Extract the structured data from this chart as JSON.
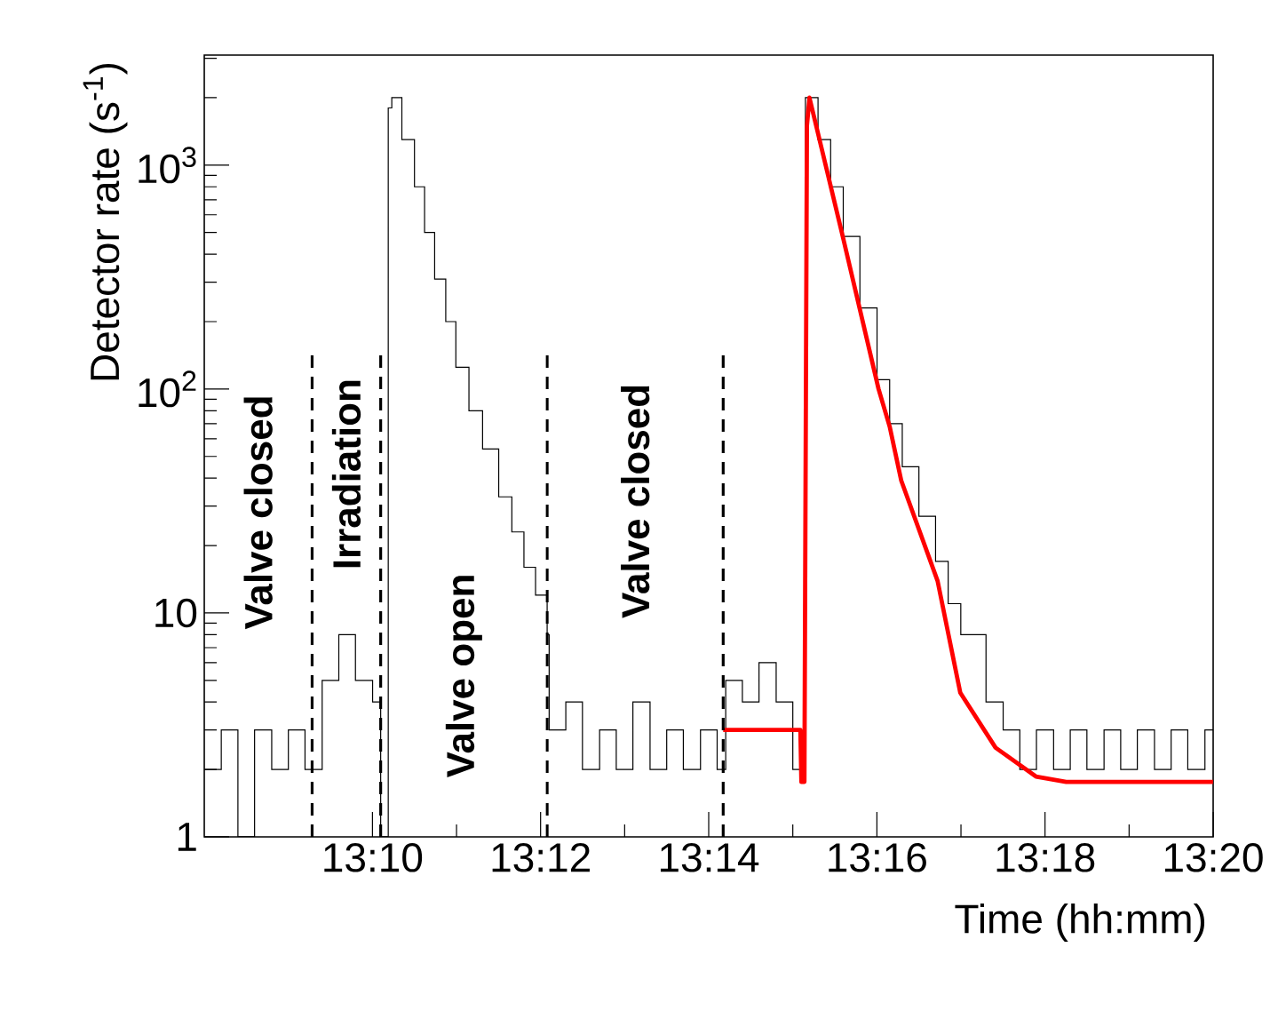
{
  "chart_data": {
    "type": "step",
    "xlabel": "Time (hh:mm)",
    "ylabel": "Detector rate (s$^{-1}$)",
    "log": "y",
    "xlim": [
      13.13333,
      13.33333
    ],
    "ylim": [
      1,
      3100
    ],
    "xticks": [
      {
        "value": 13.16667,
        "label": "13:10"
      },
      {
        "value": 13.2,
        "label": "13:12"
      },
      {
        "value": 13.23333,
        "label": "13:14"
      },
      {
        "value": 13.26667,
        "label": "13:16"
      },
      {
        "value": 13.3,
        "label": "13:18"
      },
      {
        "value": 13.33333,
        "label": "13:20"
      }
    ],
    "yticks": [
      1,
      10,
      {
        "value": 100,
        "label": "10$^{2}$"
      },
      {
        "value": 1000,
        "label": "10$^{3}$"
      }
    ],
    "ref_lines": [
      {
        "axis": "x",
        "value": 13.1547,
        "line_style": "dashed"
      },
      {
        "axis": "x",
        "value": 13.1683,
        "line_style": "dashed"
      },
      {
        "axis": "x",
        "value": 13.2013,
        "line_style": "dashed"
      },
      {
        "axis": "x",
        "value": 13.2362,
        "line_style": "dashed"
      }
    ],
    "annotations": [
      "Valve closed",
      "Irradiation",
      "Valve open",
      "Valve closed"
    ],
    "series": [
      {
        "color": "#000000",
        "x": [
          13.13333,
          13.1367,
          13.14,
          13.1433,
          13.1467,
          13.15,
          13.1533,
          13.1567,
          13.16,
          13.1633,
          13.1667,
          13.1683,
          13.1698,
          13.1705,
          13.1725,
          13.175,
          13.177,
          13.179,
          13.1812,
          13.1832,
          13.1858,
          13.1885,
          13.1917,
          13.1943,
          13.1967,
          13.199,
          13.2013,
          13.2017,
          13.205,
          13.2083,
          13.2117,
          13.215,
          13.2183,
          13.2217,
          13.225,
          13.2283,
          13.2317,
          13.235,
          13.2367,
          13.24,
          13.2433,
          13.2467,
          13.25,
          13.2525,
          13.255,
          13.2575,
          13.26,
          13.2633,
          13.2667,
          13.2692,
          13.2717,
          13.275,
          13.2783,
          13.2808,
          13.2833,
          13.2883,
          13.2917,
          13.295,
          13.2983,
          13.3017,
          13.305,
          13.3083,
          13.3117,
          13.315,
          13.3183,
          13.3217,
          13.325,
          13.3283,
          13.3317,
          13.33333
        ],
        "values": [
          2,
          3,
          1,
          3,
          2,
          3,
          2,
          5,
          8,
          5,
          4,
          1,
          1800,
          2000,
          1300,
          800,
          500,
          310,
          200,
          125,
          80,
          54,
          33,
          23,
          16,
          12,
          8,
          3,
          4,
          2,
          3,
          2,
          4,
          2,
          3,
          2,
          3,
          2,
          5,
          4,
          6,
          4,
          2,
          2000,
          1300,
          800,
          480,
          230,
          110,
          70,
          45,
          27,
          17,
          11,
          8,
          4,
          3,
          2,
          3,
          2,
          3,
          2,
          3,
          2,
          3,
          2,
          3,
          2,
          3,
          3
        ]
      },
      {
        "type": "line",
        "color": "#ff0000",
        "x": [
          13.2362,
          13.2515,
          13.2517,
          13.2523,
          13.2528,
          13.2533,
          13.26,
          13.267,
          13.2692,
          13.2715,
          13.2787,
          13.2832,
          13.2902,
          13.2982,
          13.3042,
          13.3333
        ],
        "values": [
          3,
          3,
          1.76,
          1.76,
          1500,
          2000,
          470,
          100,
          68,
          39,
          13.9,
          4.4,
          2.5,
          1.86,
          1.76,
          1.76
        ]
      }
    ]
  }
}
